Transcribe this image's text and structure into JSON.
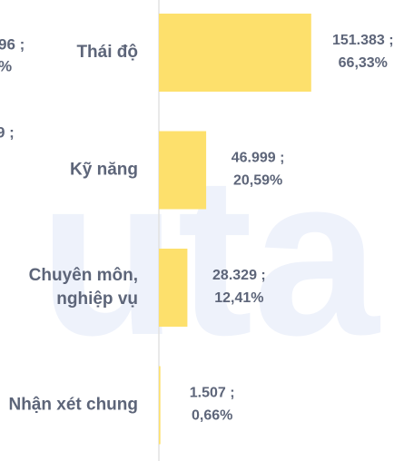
{
  "chart_data": {
    "type": "barh",
    "watermark": "uta",
    "fragments": [
      "96 ;",
      "%",
      "9 ;"
    ],
    "categories": [
      [
        "Thái độ"
      ],
      [
        "Kỹ năng"
      ],
      [
        "Chuyên môn,",
        "nghiệp vụ"
      ],
      [
        "Nhận xét chung"
      ]
    ],
    "values": [
      151383,
      46999,
      28329,
      1507
    ],
    "value_labels": [
      "151.383 ;",
      "46.999 ;",
      "28.329 ;",
      "1.507 ;"
    ],
    "percents": [
      66.33,
      20.59,
      12.41,
      0.66
    ],
    "percent_labels": [
      "66,33%",
      "20,59%",
      "12,41%",
      "0,66%"
    ],
    "color": "#fde06c",
    "xlim": [
      0,
      240000
    ]
  }
}
